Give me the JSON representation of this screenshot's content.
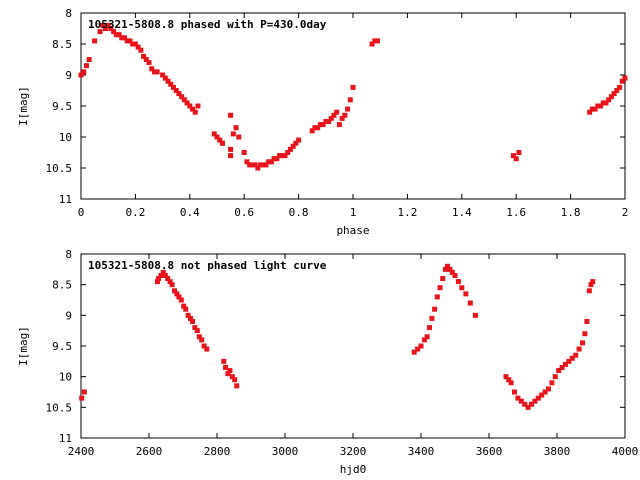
{
  "chart_data": [
    {
      "type": "scatter",
      "title": "105321-5808.8 phased with P=430.0day",
      "xlabel": "phase",
      "ylabel": "I[mag]",
      "xlim": [
        0,
        2
      ],
      "ylim": [
        11,
        8
      ],
      "y_inverted": true,
      "xticks": [
        "0",
        "0.2",
        "0.4",
        "0.6",
        "0.8",
        "1",
        "1.2",
        "1.4",
        "1.6",
        "1.8",
        "2"
      ],
      "yticks": [
        "8",
        "8.5",
        "9",
        "9.5",
        "10",
        "10.5",
        "11"
      ],
      "color": "#e8141a",
      "points": [
        [
          0.0,
          9.0
        ],
        [
          0.01,
          8.95
        ],
        [
          0.02,
          8.85
        ],
        [
          0.03,
          8.75
        ],
        [
          0.05,
          8.45
        ],
        [
          0.07,
          8.3
        ],
        [
          0.08,
          8.2
        ],
        [
          0.09,
          8.25
        ],
        [
          0.1,
          8.2
        ],
        [
          0.11,
          8.25
        ],
        [
          0.12,
          8.3
        ],
        [
          0.13,
          8.35
        ],
        [
          0.14,
          8.35
        ],
        [
          0.15,
          8.4
        ],
        [
          0.16,
          8.4
        ],
        [
          0.17,
          8.45
        ],
        [
          0.18,
          8.45
        ],
        [
          0.19,
          8.5
        ],
        [
          0.2,
          8.5
        ],
        [
          0.21,
          8.55
        ],
        [
          0.22,
          8.6
        ],
        [
          0.23,
          8.7
        ],
        [
          0.24,
          8.75
        ],
        [
          0.25,
          8.8
        ],
        [
          0.26,
          8.9
        ],
        [
          0.27,
          8.95
        ],
        [
          0.28,
          8.95
        ],
        [
          0.3,
          9.0
        ],
        [
          0.31,
          9.05
        ],
        [
          0.32,
          9.1
        ],
        [
          0.33,
          9.15
        ],
        [
          0.34,
          9.2
        ],
        [
          0.35,
          9.25
        ],
        [
          0.36,
          9.3
        ],
        [
          0.37,
          9.35
        ],
        [
          0.38,
          9.4
        ],
        [
          0.39,
          9.45
        ],
        [
          0.4,
          9.5
        ],
        [
          0.41,
          9.55
        ],
        [
          0.42,
          9.6
        ],
        [
          0.43,
          9.5
        ],
        [
          0.49,
          9.95
        ],
        [
          0.5,
          10.0
        ],
        [
          0.51,
          10.05
        ],
        [
          0.52,
          10.1
        ],
        [
          0.52,
          10.1
        ],
        [
          0.55,
          10.2
        ],
        [
          0.55,
          9.65
        ],
        [
          0.56,
          9.95
        ],
        [
          0.57,
          9.85
        ],
        [
          0.58,
          10.0
        ],
        [
          0.55,
          10.3
        ],
        [
          0.6,
          10.25
        ],
        [
          0.61,
          10.4
        ],
        [
          0.62,
          10.45
        ],
        [
          0.63,
          10.45
        ],
        [
          0.64,
          10.45
        ],
        [
          0.65,
          10.5
        ],
        [
          0.66,
          10.45
        ],
        [
          0.67,
          10.45
        ],
        [
          0.68,
          10.45
        ],
        [
          0.69,
          10.4
        ],
        [
          0.7,
          10.4
        ],
        [
          0.71,
          10.35
        ],
        [
          0.72,
          10.35
        ],
        [
          0.73,
          10.3
        ],
        [
          0.74,
          10.3
        ],
        [
          0.75,
          10.3
        ],
        [
          0.76,
          10.25
        ],
        [
          0.77,
          10.2
        ],
        [
          0.78,
          10.15
        ],
        [
          0.79,
          10.1
        ],
        [
          0.8,
          10.05
        ],
        [
          0.85,
          9.9
        ],
        [
          0.86,
          9.85
        ],
        [
          0.87,
          9.85
        ],
        [
          0.88,
          9.8
        ],
        [
          0.89,
          9.8
        ],
        [
          0.9,
          9.75
        ],
        [
          0.91,
          9.75
        ],
        [
          0.92,
          9.7
        ],
        [
          0.93,
          9.65
        ],
        [
          0.94,
          9.6
        ],
        [
          0.95,
          9.8
        ],
        [
          0.96,
          9.7
        ],
        [
          0.97,
          9.65
        ],
        [
          0.98,
          9.55
        ],
        [
          0.99,
          9.4
        ],
        [
          1.0,
          9.2
        ],
        [
          1.07,
          8.5
        ],
        [
          1.08,
          8.45
        ],
        [
          1.09,
          8.45
        ],
        [
          1.59,
          10.3
        ],
        [
          1.6,
          10.35
        ],
        [
          1.61,
          10.25
        ],
        [
          1.87,
          9.6
        ],
        [
          1.88,
          9.55
        ],
        [
          1.89,
          9.55
        ],
        [
          1.9,
          9.5
        ],
        [
          1.91,
          9.5
        ],
        [
          1.92,
          9.45
        ],
        [
          1.93,
          9.45
        ],
        [
          1.94,
          9.4
        ],
        [
          1.95,
          9.35
        ],
        [
          1.96,
          9.3
        ],
        [
          1.97,
          9.25
        ],
        [
          1.98,
          9.2
        ],
        [
          1.99,
          9.1
        ],
        [
          2.0,
          9.05
        ]
      ]
    },
    {
      "type": "scatter",
      "title": "105321-5808.8 not phased light curve",
      "xlabel": "hjd0",
      "ylabel": "I[mag]",
      "xlim": [
        2400,
        4000
      ],
      "ylim": [
        11,
        8
      ],
      "y_inverted": true,
      "xticks": [
        "2400",
        "2600",
        "2800",
        "3000",
        "3200",
        "3400",
        "3600",
        "3800",
        "4000"
      ],
      "yticks": [
        "8",
        "8.5",
        "9",
        "9.5",
        "10",
        "10.5",
        "11"
      ],
      "color": "#e8141a",
      "points": [
        [
          2402,
          10.35
        ],
        [
          2410,
          10.25
        ],
        [
          2625,
          8.45
        ],
        [
          2628,
          8.4
        ],
        [
          2635,
          8.35
        ],
        [
          2642,
          8.3
        ],
        [
          2648,
          8.35
        ],
        [
          2655,
          8.4
        ],
        [
          2662,
          8.45
        ],
        [
          2668,
          8.5
        ],
        [
          2675,
          8.6
        ],
        [
          2682,
          8.65
        ],
        [
          2688,
          8.7
        ],
        [
          2695,
          8.75
        ],
        [
          2702,
          8.85
        ],
        [
          2708,
          8.9
        ],
        [
          2715,
          9.0
        ],
        [
          2722,
          9.05
        ],
        [
          2728,
          9.1
        ],
        [
          2735,
          9.2
        ],
        [
          2742,
          9.25
        ],
        [
          2748,
          9.35
        ],
        [
          2755,
          9.4
        ],
        [
          2762,
          9.5
        ],
        [
          2770,
          9.55
        ],
        [
          2820,
          9.75
        ],
        [
          2825,
          9.85
        ],
        [
          2832,
          9.95
        ],
        [
          2838,
          9.9
        ],
        [
          2845,
          10.0
        ],
        [
          2852,
          10.05
        ],
        [
          2858,
          10.15
        ],
        [
          3380,
          9.6
        ],
        [
          3390,
          9.55
        ],
        [
          3400,
          9.5
        ],
        [
          3410,
          9.4
        ],
        [
          3418,
          9.35
        ],
        [
          3425,
          9.2
        ],
        [
          3432,
          9.05
        ],
        [
          3440,
          8.9
        ],
        [
          3448,
          8.7
        ],
        [
          3456,
          8.55
        ],
        [
          3464,
          8.4
        ],
        [
          3472,
          8.25
        ],
        [
          3478,
          8.2
        ],
        [
          3485,
          8.25
        ],
        [
          3492,
          8.3
        ],
        [
          3500,
          8.35
        ],
        [
          3510,
          8.45
        ],
        [
          3520,
          8.55
        ],
        [
          3532,
          8.65
        ],
        [
          3545,
          8.8
        ],
        [
          3560,
          9.0
        ],
        [
          3650,
          10.0
        ],
        [
          3658,
          10.05
        ],
        [
          3665,
          10.1
        ],
        [
          3675,
          10.25
        ],
        [
          3685,
          10.35
        ],
        [
          3695,
          10.4
        ],
        [
          3705,
          10.45
        ],
        [
          3715,
          10.5
        ],
        [
          3725,
          10.45
        ],
        [
          3735,
          10.4
        ],
        [
          3745,
          10.35
        ],
        [
          3755,
          10.3
        ],
        [
          3765,
          10.25
        ],
        [
          3775,
          10.2
        ],
        [
          3785,
          10.1
        ],
        [
          3795,
          10.0
        ],
        [
          3805,
          9.9
        ],
        [
          3815,
          9.85
        ],
        [
          3825,
          9.8
        ],
        [
          3835,
          9.75
        ],
        [
          3845,
          9.7
        ],
        [
          3855,
          9.65
        ],
        [
          3865,
          9.55
        ],
        [
          3875,
          9.45
        ],
        [
          3882,
          9.3
        ],
        [
          3888,
          9.1
        ],
        [
          3895,
          8.6
        ],
        [
          3900,
          8.5
        ],
        [
          3905,
          8.45
        ]
      ]
    }
  ]
}
